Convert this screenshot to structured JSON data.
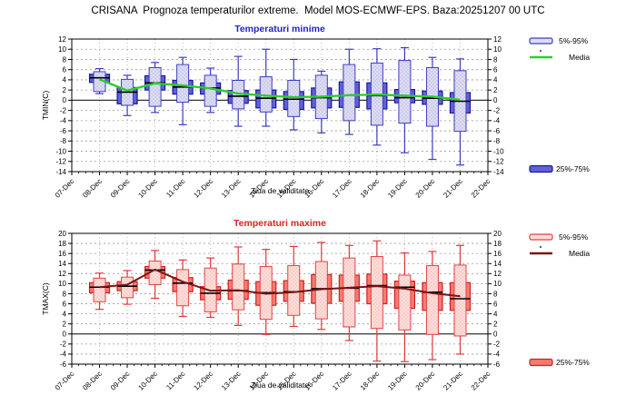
{
  "title": "CRISANA  Prognoza temperaturilor extreme.  Model MOS-ECMWF-EPS. Baza:20251207 00 UTC",
  "chart_data": [
    {
      "type": "boxplot",
      "title": "Temperaturi minime",
      "xlabel": "Ziua de validitate",
      "ylabel": "TMIN(C)",
      "ylim": [
        -14,
        12
      ],
      "ytick_step": 2,
      "grid": true,
      "zero_line": true,
      "legend_position": "right",
      "x_labels": [
        "07-Dec",
        "08-Dec",
        "09-Dec",
        "10-Dec",
        "11-Dec",
        "12-Dec",
        "13-Dec",
        "14-Dec",
        "15-Dec",
        "16-Dec",
        "17-Dec",
        "18-Dec",
        "19-Dec",
        "20-Dec",
        "21-Dec",
        "22-Dec"
      ],
      "legend": {
        "range_label": "5%-95%",
        "mean_label": "Media",
        "iqr_label": "25%-75%"
      },
      "colors": {
        "title": "#2222cc",
        "iqr_fill": "#6060d8",
        "iqr_border": "#181899",
        "range_fill": "#dcdcf4",
        "range_dot": "#9898cc",
        "range_border": "#3c3cc0",
        "whisker": "#3c3cc0",
        "median": "#000000",
        "mean": "#2ecc2e",
        "grid": "#999999",
        "zero": "#333333",
        "frame": "#000000"
      },
      "series": [
        {
          "x": "08-Dec",
          "low": 1.3,
          "p05": 1.7,
          "p25": 3.5,
          "median": 4.4,
          "p75": 5.1,
          "p95": 5.6,
          "high": 6.2,
          "mean": 4.1
        },
        {
          "x": "09-Dec",
          "low": -3.0,
          "p05": -1.0,
          "p25": -0.7,
          "median": 1.6,
          "p75": 2.5,
          "p95": 4.1,
          "high": 4.9,
          "mean": 1.9
        },
        {
          "x": "10-Dec",
          "low": -2.4,
          "p05": -1.2,
          "p25": 2.0,
          "median": 3.4,
          "p75": 4.8,
          "p95": 6.4,
          "high": 7.4,
          "mean": 3.3
        },
        {
          "x": "11-Dec",
          "low": -4.8,
          "p05": -0.4,
          "p25": 1.2,
          "median": 2.6,
          "p75": 3.9,
          "p95": 7.0,
          "high": 8.4,
          "mean": 2.9
        },
        {
          "x": "12-Dec",
          "low": -2.4,
          "p05": -1.2,
          "p25": 1.2,
          "median": 2.4,
          "p75": 3.4,
          "p95": 4.9,
          "high": 6.3,
          "mean": 2.3
        },
        {
          "x": "13-Dec",
          "low": -5.1,
          "p05": -1.7,
          "p25": -0.6,
          "median": 0.8,
          "p75": 1.9,
          "p95": 3.9,
          "high": 8.6,
          "mean": 1.3
        },
        {
          "x": "14-Dec",
          "low": -5.1,
          "p05": -2.3,
          "p25": -1.5,
          "median": 0.4,
          "p75": 2.0,
          "p95": 4.6,
          "high": 10.0,
          "mean": 0.9
        },
        {
          "x": "15-Dec",
          "low": -5.8,
          "p05": -3.2,
          "p25": -1.8,
          "median": 0.2,
          "p75": 1.7,
          "p95": 3.9,
          "high": 8.0,
          "mean": 0.6
        },
        {
          "x": "16-Dec",
          "low": -6.4,
          "p05": -3.6,
          "p25": -1.5,
          "median": 0.5,
          "p75": 2.4,
          "p95": 4.9,
          "high": 5.7,
          "mean": 0.7
        },
        {
          "x": "17-Dec",
          "low": -6.7,
          "p05": -4.0,
          "p25": -1.4,
          "median": 1.0,
          "p75": 3.6,
          "p95": 7.0,
          "high": 10.0,
          "mean": 1.0
        },
        {
          "x": "18-Dec",
          "low": -8.8,
          "p05": -4.9,
          "p25": -1.7,
          "median": 0.9,
          "p75": 3.4,
          "p95": 7.3,
          "high": 10.1,
          "mean": 1.1
        },
        {
          "x": "19-Dec",
          "low": -10.3,
          "p05": -4.5,
          "p25": -0.5,
          "median": 0.5,
          "p75": 2.1,
          "p95": 7.8,
          "high": 10.3,
          "mean": 0.9
        },
        {
          "x": "20-Dec",
          "low": -11.6,
          "p05": -5.1,
          "p25": -0.8,
          "median": 0.4,
          "p75": 1.8,
          "p95": 6.4,
          "high": 8.4,
          "mean": 0.7
        },
        {
          "x": "21-Dec",
          "low": -12.7,
          "p05": -6.1,
          "p25": -2.5,
          "median": -0.2,
          "p75": 1.5,
          "p95": 5.8,
          "high": 8.1,
          "mean": 0.1
        }
      ]
    },
    {
      "type": "boxplot",
      "title": "Temperaturi maxime",
      "xlabel": "Ziua de validitate",
      "ylabel": "TMAX(C)",
      "ylim": [
        -6,
        20
      ],
      "ytick_step": 2,
      "grid": true,
      "zero_line": true,
      "legend_position": "right",
      "x_labels": [
        "07-Dec",
        "08-Dec",
        "09-Dec",
        "10-Dec",
        "11-Dec",
        "12-Dec",
        "13-Dec",
        "14-Dec",
        "15-Dec",
        "16-Dec",
        "17-Dec",
        "18-Dec",
        "19-Dec",
        "20-Dec",
        "21-Dec",
        "22-Dec"
      ],
      "legend": {
        "range_label": "5%-95%",
        "mean_label": "Media",
        "iqr_label": "25%-75%"
      },
      "colors": {
        "title": "#dd2222",
        "iqr_fill": "#f97a70",
        "iqr_border": "#cc2222",
        "range_fill": "#fcdcd8",
        "range_dot": "#eaa49c",
        "range_border": "#e04444",
        "whisker": "#e03a3a",
        "median": "#000000",
        "mean": "#7a1414",
        "grid": "#999999",
        "zero": "#333333",
        "frame": "#000000"
      },
      "series": [
        {
          "x": "08-Dec",
          "low": 4.9,
          "p05": 6.4,
          "p25": 8.2,
          "median": 9.3,
          "p75": 10.2,
          "p95": 11.1,
          "high": 12.1,
          "mean": 9.3
        },
        {
          "x": "09-Dec",
          "low": 5.9,
          "p05": 7.2,
          "p25": 8.6,
          "median": 9.5,
          "p75": 10.4,
          "p95": 11.3,
          "high": 12.6,
          "mean": 9.8
        },
        {
          "x": "10-Dec",
          "low": 7.1,
          "p05": 9.8,
          "p25": 11.1,
          "median": 12.7,
          "p75": 13.4,
          "p95": 14.5,
          "high": 16.6,
          "mean": 12.8
        },
        {
          "x": "11-Dec",
          "low": 3.5,
          "p05": 5.6,
          "p25": 8.4,
          "median": 10.1,
          "p75": 11.2,
          "p95": 12.8,
          "high": 14.7,
          "mean": 10.4
        },
        {
          "x": "12-Dec",
          "low": 3.3,
          "p05": 4.4,
          "p25": 6.8,
          "median": 8.1,
          "p75": 9.4,
          "p95": 13.1,
          "high": 15.1,
          "mean": 8.6
        },
        {
          "x": "13-Dec",
          "low": 1.7,
          "p05": 4.8,
          "p25": 6.9,
          "median": 8.6,
          "p75": 10.7,
          "p95": 13.9,
          "high": 17.3,
          "mean": 8.7
        },
        {
          "x": "14-Dec",
          "low": -0.1,
          "p05": 2.9,
          "p25": 5.7,
          "median": 8.2,
          "p75": 10.4,
          "p95": 13.4,
          "high": 16.8,
          "mean": 8.0
        },
        {
          "x": "15-Dec",
          "low": 1.5,
          "p05": 3.7,
          "p25": 6.5,
          "median": 8.4,
          "p75": 10.6,
          "p95": 13.6,
          "high": 17.4,
          "mean": 8.3
        },
        {
          "x": "16-Dec",
          "low": 0.9,
          "p05": 3.0,
          "p25": 6.1,
          "median": 9.0,
          "p75": 11.8,
          "p95": 14.4,
          "high": 18.2,
          "mean": 8.9
        },
        {
          "x": "17-Dec",
          "low": -1.3,
          "p05": 1.4,
          "p25": 6.5,
          "median": 9.1,
          "p75": 11.7,
          "p95": 15.1,
          "high": 17.6,
          "mean": 9.2
        },
        {
          "x": "18-Dec",
          "low": -5.4,
          "p05": 1.1,
          "p25": 6.0,
          "median": 9.6,
          "p75": 11.9,
          "p95": 15.4,
          "high": 18.5,
          "mean": 9.5
        },
        {
          "x": "19-Dec",
          "low": -5.5,
          "p05": 0.8,
          "p25": 5.1,
          "median": 9.3,
          "p75": 10.5,
          "p95": 11.7,
          "high": 16.1,
          "mean": 9.0
        },
        {
          "x": "20-Dec",
          "low": -5.1,
          "p05": -0.1,
          "p25": 4.7,
          "median": 8.3,
          "p75": 10.2,
          "p95": 13.6,
          "high": 16.4,
          "mean": 8.1
        },
        {
          "x": "21-Dec",
          "low": -4.0,
          "p05": -0.4,
          "p25": 4.7,
          "median": 7.0,
          "p75": 10.2,
          "p95": 13.7,
          "high": 17.6,
          "mean": 7.5
        }
      ]
    }
  ]
}
